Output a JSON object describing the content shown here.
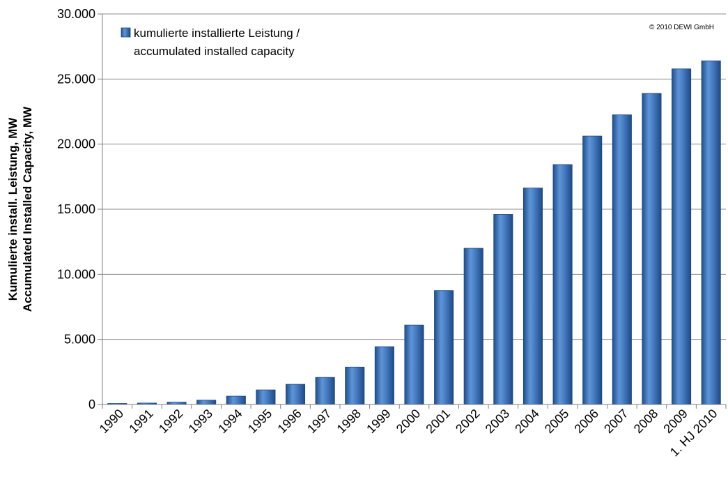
{
  "chart_data": {
    "type": "bar",
    "categories": [
      "1990",
      "1991",
      "1992",
      "1993",
      "1994",
      "1995",
      "1996",
      "1997",
      "1998",
      "1999",
      "2000",
      "2001",
      "2002",
      "2003",
      "2004",
      "2005",
      "2006",
      "2007",
      "2008",
      "2009",
      "1. HJ 2010"
    ],
    "series": [
      {
        "name": "kumulierte installierte Leistung / accumulated installed capacity",
        "name_lines": [
          "kumulierte installierte Leistung /",
          "accumulated installed capacity"
        ],
        "color": "#3a6fb8",
        "values": [
          55,
          110,
          175,
          330,
          640,
          1120,
          1550,
          2080,
          2875,
          4440,
          6100,
          8750,
          12000,
          14600,
          16630,
          18430,
          20620,
          22250,
          23900,
          25780,
          26400
        ]
      }
    ],
    "ylabel_lines": [
      "Kumulierte install. Leistung, MW",
      "Accumulated Installed Capacity, MW"
    ],
    "xlabel": "",
    "title": "",
    "ylim": [
      0,
      30000
    ],
    "yticks": [
      0,
      5000,
      10000,
      15000,
      20000,
      25000,
      30000
    ],
    "ytick_labels": [
      "0",
      "5.000",
      "10.000",
      "15.000",
      "20.000",
      "25.000",
      "30.000"
    ],
    "grid": true,
    "legend_position": "top-left",
    "copyright": "© 2010 DEWI GmbH"
  }
}
